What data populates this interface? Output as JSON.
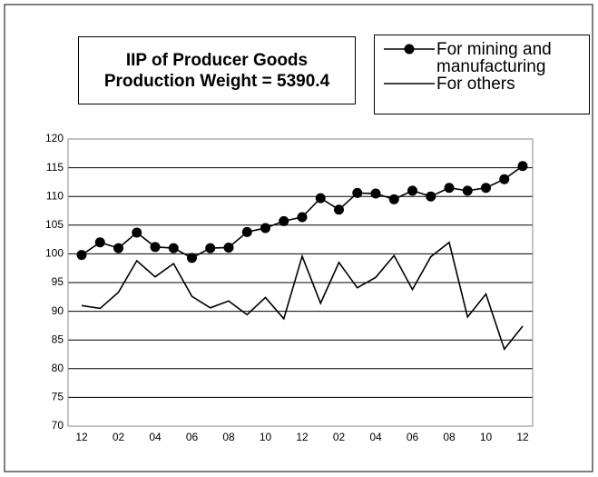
{
  "chart_data": {
    "type": "line",
    "title": [
      "IIP of Producer Goods",
      "Production Weight = 5390.4"
    ],
    "categories": [
      "12",
      null,
      "02",
      null,
      "04",
      null,
      "06",
      null,
      "08",
      null,
      "10",
      null,
      "12",
      null,
      "02",
      null,
      "04",
      null,
      "06",
      null,
      "08",
      null,
      "10",
      null,
      "12"
    ],
    "series": [
      {
        "name": "For mining and manufacturing",
        "color": "#000000",
        "marker": "circle",
        "values": [
          99.8,
          102,
          101,
          103.7,
          101.2,
          101,
          99.3,
          101,
          101.1,
          103.8,
          104.5,
          105.7,
          106.4,
          109.7,
          107.7,
          110.6,
          110.5,
          109.5,
          111,
          110,
          111.5,
          111,
          111.5,
          113,
          115.3
        ]
      },
      {
        "name": "For others",
        "color": "#000000",
        "marker": null,
        "values": [
          91,
          90.5,
          93.3,
          98.8,
          96,
          98.3,
          92.6,
          90.6,
          91.8,
          89.4,
          92.4,
          88.7,
          99.6,
          91.4,
          98.5,
          94.1,
          95.9,
          99.7,
          93.8,
          99.5,
          102,
          89,
          93,
          83.4,
          87.4
        ]
      }
    ],
    "ylim": [
      70,
      120
    ],
    "yticks": [
      70,
      75,
      80,
      85,
      90,
      95,
      100,
      105,
      110,
      115,
      120
    ],
    "grid": true
  }
}
